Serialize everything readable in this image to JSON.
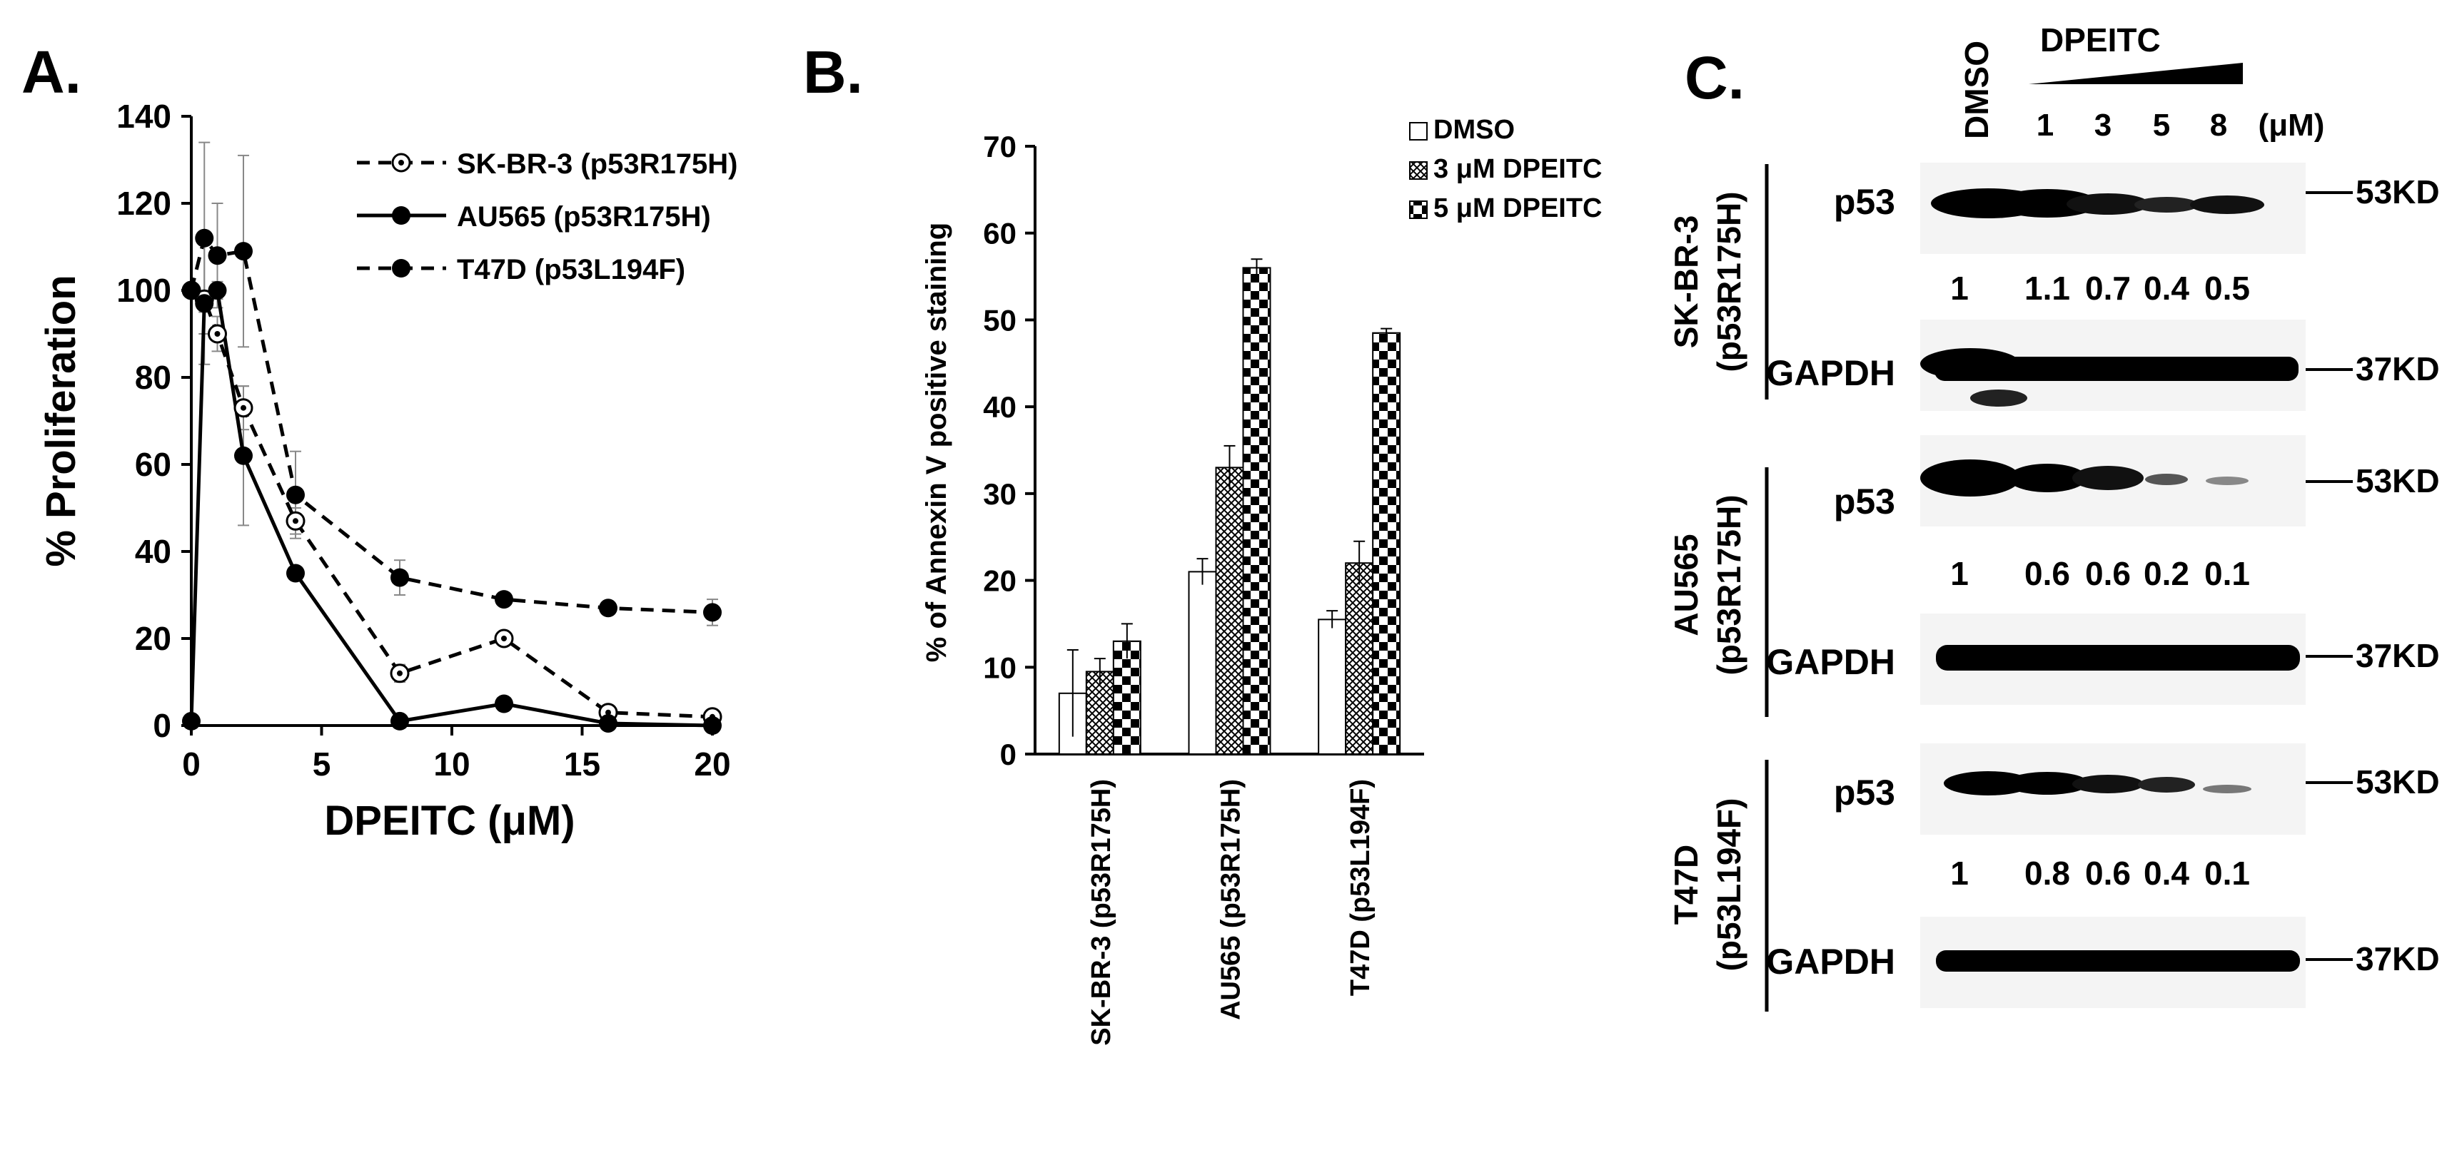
{
  "panel_labels": {
    "a": "A.",
    "b": "B.",
    "c": "C."
  },
  "chart_data": [
    {
      "panel": "A",
      "type": "line",
      "xlabel": "DPEITC (μM)",
      "ylabel": "% Proliferation",
      "xlim": [
        0,
        20
      ],
      "ylim": [
        0,
        140
      ],
      "xticks": [
        0,
        5,
        10,
        15,
        20
      ],
      "yticks": [
        0,
        20,
        40,
        60,
        80,
        100,
        120,
        140
      ],
      "grid": false,
      "legend": "top-right",
      "series": [
        {
          "name": "SK-BR-3 (p53R175H)",
          "line": "dashed",
          "marker": "open-circle-dot",
          "x": [
            0,
            0.5,
            1,
            2,
            4,
            8,
            12,
            16,
            20
          ],
          "y": [
            100,
            98,
            90,
            73,
            47,
            12,
            20,
            3,
            2
          ],
          "err": [
            0,
            15,
            4,
            5,
            3,
            2,
            1,
            1,
            1
          ]
        },
        {
          "name": "AU565 (p53R175H)",
          "line": "solid",
          "marker": "filled-circle",
          "x": [
            0,
            0.5,
            1,
            2,
            4,
            8,
            12,
            16,
            20
          ],
          "y": [
            1,
            97,
            100,
            62,
            35,
            1,
            5,
            0.5,
            0
          ],
          "err": [
            0,
            2,
            2,
            16,
            1,
            1,
            1,
            0.5,
            0.5
          ]
        },
        {
          "name": "T47D (p53L194F)",
          "line": "dashed",
          "marker": "filled-circle",
          "x": [
            0,
            0.5,
            1,
            2,
            4,
            8,
            12,
            16,
            20
          ],
          "y": [
            100,
            112,
            108,
            109,
            53,
            34,
            29,
            27,
            26
          ],
          "err": [
            0,
            22,
            12,
            22,
            10,
            4,
            1,
            1,
            3
          ]
        }
      ]
    },
    {
      "panel": "B",
      "type": "bar",
      "ylabel": "% of Annexin V positive staining",
      "ylim": [
        0,
        70
      ],
      "yticks": [
        0,
        10,
        20,
        30,
        40,
        50,
        60,
        70
      ],
      "grid": false,
      "legend": "top-right",
      "categories": [
        "SK-BR-3 (p53R175H)",
        "AU565 (p53R175H)",
        "T47D (p53L194F)"
      ],
      "series": [
        {
          "name": "DMSO",
          "pattern": "white",
          "values": [
            7,
            21,
            15.5
          ],
          "err": [
            5,
            1.5,
            1
          ]
        },
        {
          "name": "3 μM DPEITC",
          "pattern": "crosshatch",
          "values": [
            9.5,
            33,
            22
          ],
          "err": [
            1.5,
            2.5,
            2.5
          ]
        },
        {
          "name": "5 μM DPEITC",
          "pattern": "checker",
          "values": [
            13,
            56,
            48.5
          ],
          "err": [
            2,
            1,
            0.5
          ]
        }
      ]
    }
  ],
  "western": {
    "treatment_label": "DPEITC",
    "dmso_label": "DMSO",
    "doses": [
      "1",
      "3",
      "5",
      "8"
    ],
    "unit": "(μM)",
    "blots": [
      {
        "cell_line": "SK-BR-3",
        "mutation": "(p53R175H)",
        "p53_label": "p53",
        "p53_marker": "53KD",
        "quant": [
          "1",
          "1.1",
          "0.7",
          "0.4",
          "0.5"
        ],
        "gapdh_label": "GAPDH",
        "gapdh_marker": "37KD"
      },
      {
        "cell_line": "AU565",
        "mutation": "(p53R175H)",
        "p53_label": "p53",
        "p53_marker": "53KD",
        "quant": [
          "1",
          "0.6",
          "0.6",
          "0.2",
          "0.1"
        ],
        "gapdh_label": "GAPDH",
        "gapdh_marker": "37KD"
      },
      {
        "cell_line": "T47D",
        "mutation": "(p53L194F)",
        "p53_label": "p53",
        "p53_marker": "53KD",
        "quant": [
          "1",
          "0.8",
          "0.6",
          "0.4",
          "0.1"
        ],
        "gapdh_label": "GAPDH",
        "gapdh_marker": "37KD"
      }
    ]
  }
}
